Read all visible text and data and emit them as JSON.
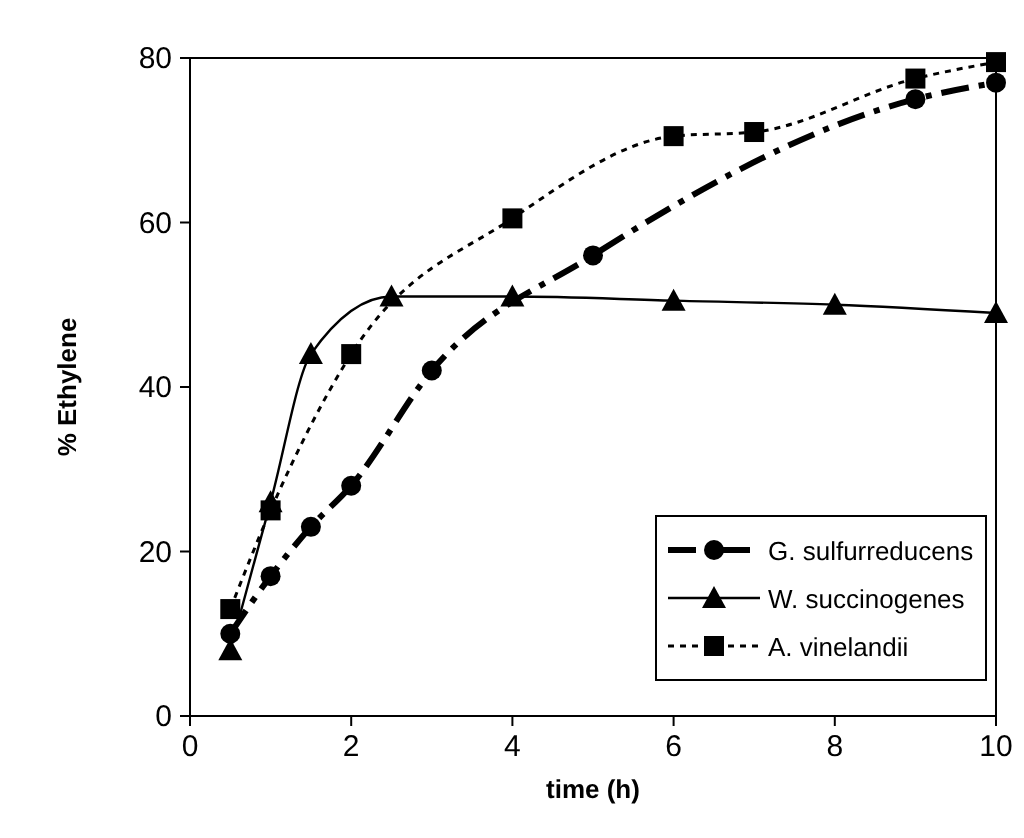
{
  "chart_data": {
    "type": "line",
    "xlabel": "time (h)",
    "ylabel": "% Ethylene",
    "xlim": [
      0,
      10
    ],
    "ylim": [
      0,
      80
    ],
    "xticks": [
      0,
      2,
      4,
      6,
      8,
      10
    ],
    "yticks": [
      0,
      20,
      40,
      60,
      80
    ],
    "grid": false,
    "legend": "bottom right",
    "series": [
      {
        "name": "G. sulfurreducens",
        "color": "#000000",
        "marker": "circle",
        "line_style": "dashed",
        "x": [
          0.5,
          1,
          1.5,
          2,
          3,
          5,
          9,
          10
        ],
        "values": [
          10,
          17,
          23,
          28,
          42,
          56,
          75,
          77
        ]
      },
      {
        "name": "W. succinogenes",
        "color": "#000000",
        "marker": "triangle",
        "line_style": "solid",
        "x": [
          0.5,
          1,
          1.5,
          2.5,
          4,
          6,
          8,
          10
        ],
        "values": [
          8,
          26,
          44,
          51,
          51,
          50.5,
          50,
          49
        ]
      },
      {
        "name": "A. vinelandii",
        "color": "#000000",
        "marker": "square",
        "line_style": "dotted",
        "x": [
          0.5,
          1,
          2,
          4,
          6,
          7,
          9,
          10
        ],
        "values": [
          13,
          25,
          44,
          60.5,
          70.5,
          71,
          77.5,
          79.5
        ]
      }
    ]
  }
}
